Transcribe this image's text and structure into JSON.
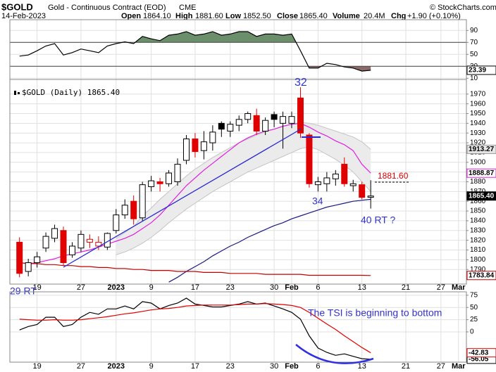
{
  "header": {
    "symbol": "$GOLD",
    "description": "Gold - Continuous Contract (EOD)",
    "exchange": "CME",
    "date": "14-Feb-2023",
    "copyright": "© StockCharts.com",
    "quote": [
      {
        "label": "Open",
        "value": "1864.10"
      },
      {
        "label": "High",
        "value": "1881.60"
      },
      {
        "label": "Low",
        "value": "1852.50"
      },
      {
        "label": "Close",
        "value": "1865.40"
      },
      {
        "label": "Volume",
        "value": "20.4M"
      },
      {
        "label": "Chg",
        "value": "+1.90 (+0.10%)"
      }
    ]
  },
  "chart_data": [
    {
      "type": "line",
      "ylim": [
        8,
        108
      ],
      "yticks": [
        10,
        30,
        50,
        70,
        90
      ],
      "thresholds": [
        30,
        70
      ],
      "threshold_colors": [
        "#8c6a6a",
        "#6b8f6b"
      ],
      "xlim": [
        -1.1,
        50.9
      ],
      "series": [
        {
          "color": "#000000",
          "values": [
            47,
            49,
            56,
            64,
            68,
            49,
            53,
            59,
            56,
            53,
            64,
            68,
            71,
            68,
            80,
            76,
            73,
            82,
            84,
            88,
            82,
            84,
            88,
            82,
            84,
            88,
            88,
            80,
            84,
            84,
            82,
            84,
            56,
            27,
            27,
            35,
            33,
            29,
            27,
            22,
            23.39
          ],
          "last_label": "23.39"
        }
      ]
    },
    {
      "type": "candlestick",
      "legend": "$GOLD (Daily) 1865.40",
      "ylim": [
        1775,
        1985
      ],
      "yticks": [
        1790,
        1800,
        1810,
        1820,
        1830,
        1840,
        1850,
        1860,
        1870,
        1880,
        1890,
        1900,
        1910,
        1920,
        1930,
        1940,
        1950,
        1960,
        1970
      ],
      "xlim": [
        -1.1,
        50.9
      ],
      "xticks": [
        {
          "value": 2,
          "label": "19"
        },
        {
          "value": 7,
          "label": "27"
        },
        {
          "value": 11,
          "label": "2023"
        },
        {
          "value": 15,
          "label": "9"
        },
        {
          "value": 20,
          "label": "17"
        },
        {
          "value": 24,
          "label": "23"
        },
        {
          "value": 29,
          "label": "30"
        },
        {
          "value": 31,
          "label": "Feb"
        },
        {
          "value": 34,
          "label": "6"
        },
        {
          "value": 39,
          "label": "13"
        },
        {
          "value": 44,
          "label": "21"
        },
        {
          "value": 48,
          "label": "27"
        },
        {
          "value": 50,
          "label": "Mar"
        }
      ],
      "candles": {
        "open": [
          1818,
          1788,
          1797,
          1812,
          1822,
          1830,
          1805,
          1812,
          1818,
          1814,
          1813,
          1830,
          1846,
          1860,
          1843,
          1875,
          1880,
          1878,
          1880,
          1902,
          1924,
          1912,
          1920,
          1940,
          1932,
          1938,
          1944,
          1948,
          1932,
          1949,
          1940,
          1940,
          1966,
          1928,
          1877,
          1878,
          1883,
          1898,
          1876,
          1877,
          1864.1
        ],
        "high": [
          1823,
          1801,
          1808,
          1828,
          1836,
          1834,
          1818,
          1830,
          1826,
          1824,
          1828,
          1852,
          1862,
          1866,
          1880,
          1886,
          1884,
          1892,
          1904,
          1928,
          1930,
          1932,
          1938,
          1942,
          1942,
          1948,
          1952,
          1955,
          1946,
          1952,
          1952,
          1952,
          1977,
          1930,
          1885,
          1890,
          1892,
          1905,
          1882,
          1880,
          1881.6
        ],
        "low": [
          1782,
          1783,
          1792,
          1808,
          1818,
          1794,
          1802,
          1808,
          1812,
          1810,
          1810,
          1827,
          1842,
          1836,
          1840,
          1870,
          1870,
          1875,
          1876,
          1898,
          1905,
          1903,
          1912,
          1926,
          1926,
          1932,
          1940,
          1928,
          1928,
          1936,
          1914,
          1935,
          1925,
          1874,
          1870,
          1870,
          1876,
          1875,
          1870,
          1862,
          1852.5
        ],
        "close": [
          1786,
          1797,
          1803,
          1824,
          1832,
          1797,
          1814,
          1826,
          1821,
          1818,
          1827,
          1846,
          1856,
          1842,
          1877,
          1881,
          1878,
          1889,
          1898,
          1924,
          1911,
          1921,
          1931,
          1934,
          1939,
          1944,
          1950,
          1932,
          1943,
          1944,
          1947,
          1947,
          1930,
          1878,
          1880,
          1884,
          1888,
          1878,
          1878,
          1864,
          1865.4
        ],
        "last_label": "1865.40",
        "up_color": "#000000",
        "down_color": "#e00000"
      },
      "band": {
        "fill": "#ebebeb",
        "stroke": "#c4c4c4",
        "upper": [
          null,
          null,
          null,
          null,
          null,
          null,
          null,
          null,
          null,
          null,
          null,
          1822,
          1828,
          1834,
          1845,
          1853,
          1862,
          1870,
          1878,
          1886,
          1893,
          1899,
          1905,
          1910,
          1915,
          1920,
          1924,
          1928,
          1931,
          1934,
          1937,
          1939,
          1941,
          1940,
          1938,
          1935,
          1932,
          1929,
          1926,
          1921,
          1913.27
        ],
        "lower": [
          null,
          null,
          null,
          null,
          null,
          null,
          null,
          null,
          null,
          null,
          null,
          1805,
          1808,
          1812,
          1817,
          1823,
          1830,
          1838,
          1845,
          1852,
          1858,
          1864,
          1870,
          1875,
          1880,
          1885,
          1890,
          1894,
          1898,
          1902,
          1906,
          1910,
          1914,
          1916,
          1913,
          1908,
          1903,
          1897,
          1890,
          1880,
          1870
        ],
        "upper_label": "1913.27"
      },
      "series": [
        {
          "color": "#e020e0",
          "values": [
            null,
            1796,
            1797,
            1799,
            1801,
            1804,
            1806,
            1808,
            1810,
            1813,
            1816,
            1819,
            1822,
            1826,
            1832,
            1838,
            1846,
            1856,
            1866,
            1876,
            1884,
            1892,
            1899,
            1906,
            1913,
            1920,
            1925,
            1929,
            1932,
            1934,
            1937,
            1939,
            1940,
            1936,
            1931,
            1927,
            1922,
            1918,
            1912,
            1898,
            1888.87
          ],
          "last_label": "1888.87"
        },
        {
          "color": "#1a1a80",
          "values": [
            null,
            null,
            null,
            null,
            null,
            null,
            null,
            null,
            null,
            null,
            null,
            null,
            null,
            null,
            null,
            null,
            null,
            1777,
            1782,
            1788,
            1793,
            1798,
            1804,
            1809,
            1814,
            1818,
            1823,
            1827,
            1831,
            1835,
            1838,
            1842,
            1845,
            1848,
            1851,
            1854,
            1856,
            1858,
            1860,
            1861,
            1862
          ]
        },
        {
          "color": "#c00000",
          "values": [
            1797,
            1796,
            1796,
            1795,
            1795,
            1794,
            1794,
            1793,
            1793,
            1792,
            1792,
            1791,
            1791,
            1790,
            1790,
            1789,
            1789,
            1789,
            1788,
            1788,
            1788,
            1787,
            1787,
            1787,
            1786,
            1786,
            1786,
            1786,
            1785,
            1785,
            1785,
            1785,
            1785,
            1784,
            1784,
            1784,
            1784,
            1784,
            1784,
            1784,
            1783.84
          ],
          "last_label": "1783.84"
        }
      ],
      "annotations": [
        "32",
        "34",
        "40 RT ?",
        "29 RT",
        "1881.60"
      ]
    },
    {
      "type": "line",
      "ylim": [
        -62,
        82
      ],
      "yticks": [
        0,
        25,
        50,
        75
      ],
      "xlim": [
        -1.1,
        50.9
      ],
      "xticks": [
        {
          "value": 2,
          "label": "19"
        },
        {
          "value": 7,
          "label": "27"
        },
        {
          "value": 11,
          "label": "2023"
        },
        {
          "value": 15,
          "label": "9"
        },
        {
          "value": 20,
          "label": "17"
        },
        {
          "value": 24,
          "label": "23"
        },
        {
          "value": 29,
          "label": "30"
        },
        {
          "value": 31,
          "label": "Feb"
        },
        {
          "value": 34,
          "label": "6"
        },
        {
          "value": 39,
          "label": "13"
        },
        {
          "value": 44,
          "label": "21"
        },
        {
          "value": 48,
          "label": "27"
        },
        {
          "value": 50,
          "label": "Mar"
        }
      ],
      "series": [
        {
          "color": "#000000",
          "values": [
            4,
            11,
            15,
            30,
            30,
            11,
            15,
            30,
            40,
            36,
            47,
            47,
            53,
            47,
            62,
            59,
            47,
            54,
            59,
            69,
            57,
            54,
            51,
            51,
            54,
            57,
            62,
            57,
            59,
            53,
            47,
            40,
            26,
            -8,
            -33,
            -42,
            -48,
            -45,
            -50,
            -55,
            -56.05
          ],
          "last_label": "-56.05"
        },
        {
          "color": "#e00000",
          "values": [
            26,
            25,
            24,
            24,
            25,
            24,
            24,
            25,
            27,
            29,
            31,
            34,
            37,
            39,
            42,
            45,
            47,
            48,
            50,
            53,
            54,
            55,
            55,
            55,
            55,
            56,
            57,
            57,
            58,
            57,
            56,
            54,
            50,
            40,
            28,
            16,
            5,
            -8,
            -20,
            -32,
            -42.83
          ],
          "last_label": "-42.83"
        }
      ],
      "annotations": [
        "The TSI is beginning to bottom"
      ]
    }
  ]
}
